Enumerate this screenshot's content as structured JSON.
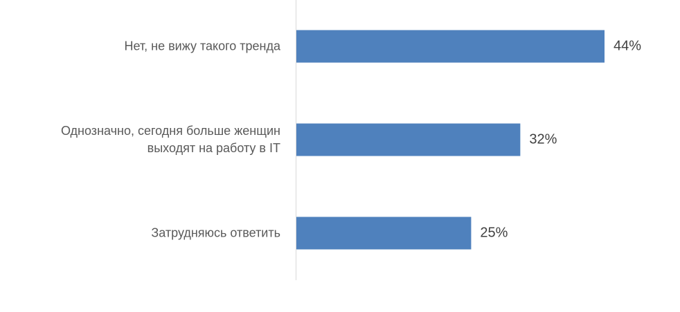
{
  "chart_data": {
    "type": "bar",
    "orientation": "horizontal",
    "categories": [
      "Нет, не вижу такого тренда",
      "Однозначно, сегодня больше женщин\nвыходят на работу в IT",
      "Затрудняюсь ответить"
    ],
    "values": [
      44,
      32,
      25
    ],
    "value_labels": [
      "44%",
      "32%",
      "25%"
    ],
    "color": "#4f81bd"
  }
}
